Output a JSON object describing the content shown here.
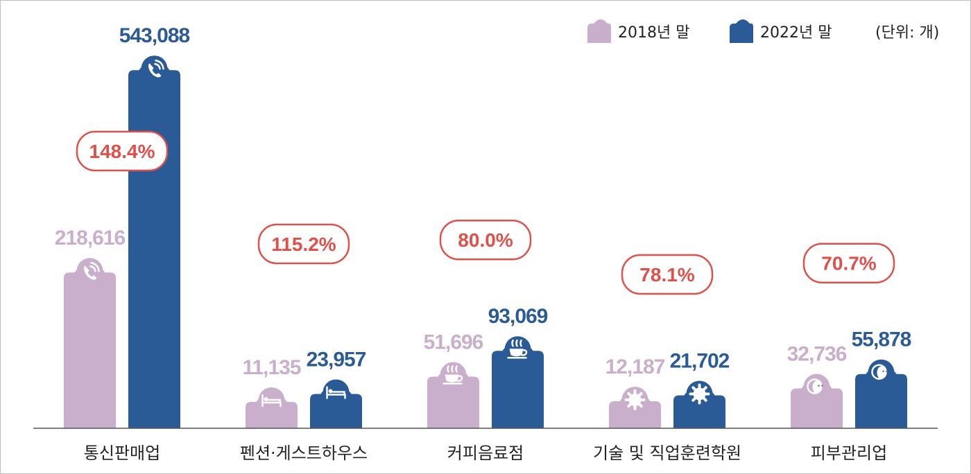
{
  "chart_data": {
    "type": "bar",
    "unit_note": "(단위: 개)",
    "categories": [
      "통신판매업",
      "펜션·게스트하우스",
      "커피음료점",
      "기술 및 직업훈련학원",
      "피부관리업"
    ],
    "series": [
      {
        "name": "2018년 말",
        "values": [
          218616,
          11135,
          51696,
          12187,
          32736
        ],
        "labels": [
          "218,616",
          "11,135",
          "51,696",
          "12,187",
          "32,736"
        ]
      },
      {
        "name": "2022년 말",
        "values": [
          543088,
          23957,
          93069,
          21702,
          55878
        ],
        "labels": [
          "543,088",
          "23,957",
          "93,069",
          "21,702",
          "55,878"
        ]
      }
    ],
    "growth_labels": [
      "148.4%",
      "115.2%",
      "80.0%",
      "78.1%",
      "70.7%"
    ],
    "icons": [
      "phone-icon",
      "bed-icon",
      "coffee-cup-icon",
      "gear-icon",
      "face-mask-icon"
    ],
    "colors": {
      "2018": "#c9afcb",
      "2022": "#2a5b97",
      "growth": "#e0504a"
    },
    "legend_position": "top-right",
    "grid": false
  }
}
